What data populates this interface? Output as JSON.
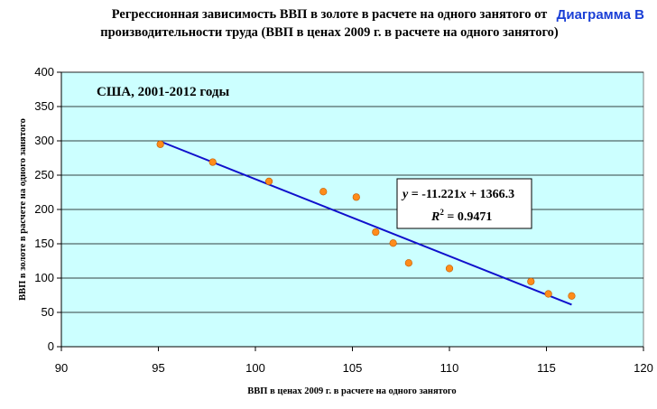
{
  "chart_data": {
    "type": "scatter",
    "title": "Регрессионная зависимость ВВП в золоте в расчете на одного занятого от производительности труда (ВВП в ценах 2009 г. в расчете на одного занятого)",
    "tag": "Диаграмма В",
    "annotation": "США, 2001-2012 годы",
    "xlabel": "ВВП в ценах 2009 г. в расчете на одного занятого",
    "ylabel": "ВВП в золоте в расчете на одного занятого",
    "xlim": [
      90,
      120
    ],
    "ylim": [
      0,
      400
    ],
    "xticks": [
      "90",
      "95",
      "100",
      "105",
      "110",
      "115",
      "120"
    ],
    "yticks": [
      "0",
      "50",
      "100",
      "150",
      "200",
      "250",
      "300",
      "350",
      "400"
    ],
    "grid": true,
    "plot_background": "#ccffff",
    "point_color": "#ff8c1a",
    "trendline_color": "#1010cc",
    "series": [
      {
        "x": [
          95.1,
          97.8,
          100.7,
          103.5,
          105.2,
          106.2,
          107.1,
          107.9,
          110.0,
          114.2,
          115.1,
          116.3
        ],
        "y": [
          295,
          269,
          241,
          226,
          218,
          167,
          151,
          122,
          114,
          95,
          77,
          74
        ]
      }
    ],
    "trendline": {
      "slope": -11.221,
      "intercept": 1366.3,
      "x_range": [
        95.1,
        116.3
      ],
      "equation": {
        "y": "y",
        "eq": " = -11.221",
        "x": "x",
        "rest": " + 1366.3",
        "r": "R",
        "sup": "2",
        "rval": " = 0.9471"
      }
    }
  }
}
